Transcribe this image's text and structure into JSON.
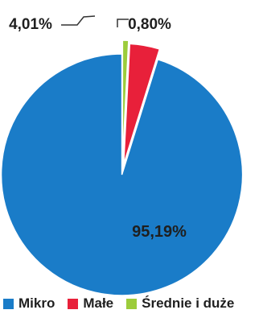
{
  "chart_data": {
    "type": "pie",
    "title": "",
    "categories": [
      "Mikro",
      "Małe",
      "Średnie i duże"
    ],
    "values": [
      95.19,
      4.01,
      0.8
    ],
    "value_labels": [
      "95,19%",
      "4,01%",
      "0,80%"
    ],
    "colors": [
      "#1a7cc8",
      "#e8203a",
      "#9ccc3b"
    ],
    "exploded": [
      true,
      true,
      true
    ],
    "legend_position": "bottom",
    "start_angle_deg": 0,
    "direction": "counterclockwise"
  }
}
